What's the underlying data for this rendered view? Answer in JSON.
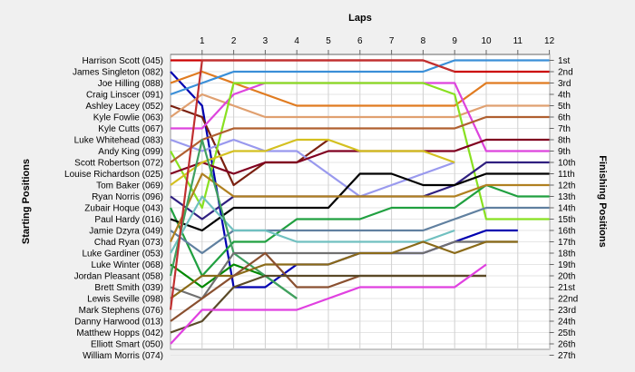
{
  "chart_data": {
    "type": "line",
    "title": "Laps",
    "xlabel": "",
    "ylabel_left": "Starting Positions",
    "ylabel_right": "Finishing Positions",
    "x": [
      0,
      1,
      2,
      3,
      4,
      5,
      6,
      7,
      8,
      9,
      10,
      11,
      12
    ],
    "x_ticks": [
      "1",
      "2",
      "3",
      "4",
      "5",
      "6",
      "7",
      "8",
      "9",
      "10",
      "11",
      "12"
    ],
    "finishing_labels": [
      "1st",
      "2nd",
      "3rd",
      "4th",
      "5th",
      "6th",
      "7th",
      "8th",
      "9th",
      "10th",
      "11th",
      "12th",
      "13th",
      "14th",
      "15th",
      "16th",
      "17th",
      "18th",
      "19th",
      "20th",
      "21st",
      "22nd",
      "23rd",
      "24th",
      "25th",
      "26th",
      "27th"
    ],
    "y_inverted": true,
    "grid": true,
    "series": [
      {
        "name": "Harrison Scott (045)",
        "color": "#cc0000",
        "values": [
          1,
          1,
          1,
          1,
          1,
          1,
          1,
          1,
          1,
          2,
          2,
          2,
          2
        ]
      },
      {
        "name": "James Singleton (082)",
        "color": "#0000b0",
        "values": [
          2,
          5,
          21,
          21,
          19,
          19,
          18,
          18,
          18,
          17,
          16,
          16,
          null
        ]
      },
      {
        "name": "Joe Hilling (088)",
        "color": "#e07b20",
        "values": [
          3,
          2,
          3,
          4,
          5,
          5,
          5,
          5,
          5,
          5,
          3,
          3,
          3
        ]
      },
      {
        "name": "Craig Linscer (091)",
        "color": "#3a8fd8",
        "values": [
          4,
          3,
          2,
          2,
          2,
          2,
          2,
          2,
          2,
          1,
          1,
          1,
          1
        ]
      },
      {
        "name": "Ashley Lacey (052)",
        "color": "#7a2010",
        "values": [
          5,
          6,
          12,
          10,
          10,
          8,
          null,
          null,
          null,
          null,
          null,
          null,
          null
        ]
      },
      {
        "name": "Kyle Fowlie (063)",
        "color": "#e0a070",
        "values": [
          6,
          4,
          5,
          6,
          6,
          6,
          6,
          6,
          6,
          6,
          5,
          5,
          5
        ]
      },
      {
        "name": "Kyle Cutts (067)",
        "color": "#dd44dd",
        "values": [
          7,
          7,
          4,
          3,
          3,
          3,
          3,
          3,
          3,
          3,
          9,
          9,
          9
        ]
      },
      {
        "name": "Luke Whitehead (083)",
        "color": "#9999ee",
        "values": [
          8,
          9,
          8,
          9,
          9,
          11,
          13,
          12,
          11,
          10,
          null,
          null,
          null
        ]
      },
      {
        "name": "Andy King (099)",
        "color": "#88e020",
        "values": [
          9,
          14,
          3,
          3,
          3,
          3,
          3,
          3,
          3,
          4,
          15,
          15,
          15
        ]
      },
      {
        "name": "Scott Robertson (072)",
        "color": "#b06030",
        "values": [
          10,
          8,
          7,
          7,
          7,
          7,
          7,
          7,
          7,
          7,
          6,
          6,
          6
        ]
      },
      {
        "name": "Louise Richardson (025)",
        "color": "#800020",
        "values": [
          11,
          10,
          11,
          10,
          10,
          9,
          9,
          9,
          9,
          9,
          8,
          8,
          8
        ]
      },
      {
        "name": "Tom Baker (069)",
        "color": "#d4c020",
        "values": [
          12,
          10,
          9,
          9,
          8,
          8,
          9,
          9,
          9,
          10,
          null,
          null,
          null
        ]
      },
      {
        "name": "Ryan Norris (096)",
        "color": "#302080",
        "values": [
          13,
          15,
          13,
          13,
          13,
          13,
          13,
          13,
          13,
          12,
          10,
          10,
          10
        ]
      },
      {
        "name": "Zubair Hoque (043)",
        "color": "#20a040",
        "values": [
          14,
          20,
          17,
          17,
          15,
          15,
          15,
          14,
          14,
          14,
          12,
          13,
          13
        ]
      },
      {
        "name": "Paul Hardy (016)",
        "color": "#000000",
        "values": [
          15,
          16,
          14,
          14,
          14,
          14,
          11,
          11,
          12,
          12,
          11,
          11,
          11
        ]
      },
      {
        "name": "Jamie Dzyra (049)",
        "color": "#6080a0",
        "values": [
          16,
          18,
          16,
          16,
          16,
          16,
          16,
          16,
          16,
          15,
          14,
          14,
          14
        ]
      },
      {
        "name": "Chad Ryan (073)",
        "color": "#b08020",
        "values": [
          17,
          11,
          13,
          13,
          13,
          13,
          13,
          13,
          13,
          13,
          12,
          12,
          12
        ]
      },
      {
        "name": "Luke Gardiner (053)",
        "color": "#70c0c0",
        "values": [
          18,
          13,
          16,
          16,
          17,
          17,
          17,
          17,
          17,
          16,
          null,
          null,
          null
        ]
      },
      {
        "name": "Luke Winter (068)",
        "color": "#008800",
        "values": [
          19,
          21,
          19,
          20,
          22,
          null,
          null,
          null,
          null,
          null,
          null,
          null,
          null
        ]
      },
      {
        "name": "Jordan Pleasant (058)",
        "color": "#40a060",
        "values": [
          20,
          8,
          18,
          20,
          22,
          null,
          null,
          null,
          null,
          null,
          null,
          null,
          null
        ]
      },
      {
        "name": "Brett Smith (039)",
        "color": "#707070",
        "values": [
          21,
          22,
          18,
          18,
          18,
          18,
          18,
          18,
          18,
          17,
          17,
          17,
          null
        ]
      },
      {
        "name": "Lewis Seville (098)",
        "color": "#8a6a18",
        "values": [
          22,
          20,
          20,
          19,
          19,
          19,
          18,
          18,
          17,
          18,
          17,
          17,
          null
        ]
      },
      {
        "name": "Mark Stephens (076)",
        "color": "#c03030",
        "values": [
          23,
          1,
          1,
          1,
          1,
          1,
          1,
          1,
          1,
          2,
          null,
          null,
          null
        ]
      },
      {
        "name": "Danny Harwood (013)",
        "color": "#8a5030",
        "values": [
          24,
          22,
          20,
          18,
          21,
          21,
          20,
          20,
          20,
          20,
          20,
          null,
          null
        ]
      },
      {
        "name": "Matthew Hopps (042)",
        "color": "#5a4a28",
        "values": [
          25,
          24,
          21,
          20,
          20,
          20,
          20,
          20,
          20,
          20,
          20,
          null,
          null
        ]
      },
      {
        "name": "Elliott Smart (050)",
        "color": "#e040e0",
        "values": [
          26,
          23,
          23,
          23,
          23,
          22,
          21,
          21,
          21,
          21,
          19,
          null,
          null
        ]
      },
      {
        "name": "William Morris (074)",
        "color": "#999999",
        "values": [
          27,
          null,
          null,
          null,
          null,
          null,
          null,
          null,
          null,
          null,
          null,
          null,
          null
        ]
      }
    ]
  }
}
